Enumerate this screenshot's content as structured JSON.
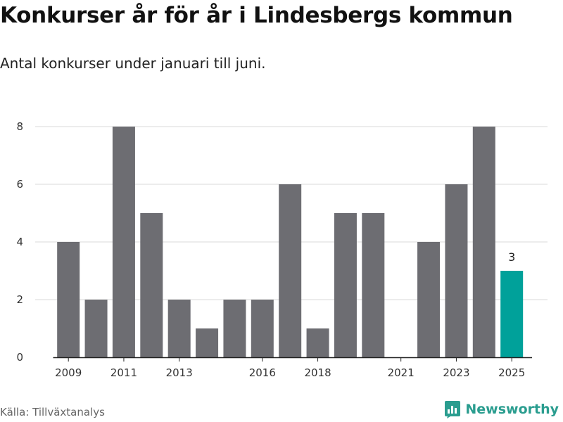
{
  "title": "Konkurser år för år i Lindesbergs kommun",
  "subtitle": "Antal konkurser under januari till juni.",
  "source": "Källa: Tillväxtanalys",
  "brand": {
    "name": "Newsworthy",
    "icon": "newsworthy-logo-icon"
  },
  "colors": {
    "bar": "#6d6d72",
    "highlight": "#00a19a",
    "grid": "#d9d9d9",
    "axis": "#222222",
    "brand": "#2a9d8f"
  },
  "chart_data": {
    "type": "bar",
    "categories": [
      "2009",
      "2010",
      "2011",
      "2012",
      "2013",
      "2014",
      "2015",
      "2016",
      "2017",
      "2018",
      "2019",
      "2020",
      "2021",
      "2022",
      "2023",
      "2024",
      "2025"
    ],
    "values": [
      4,
      2,
      8,
      5,
      2,
      1,
      2,
      2,
      6,
      1,
      5,
      5,
      0,
      4,
      6,
      8,
      3
    ],
    "highlight_category": "2025",
    "highlight_label": "3",
    "x_tick_labels": [
      "2009",
      "2011",
      "2013",
      "2016",
      "2018",
      "2021",
      "2023",
      "2025"
    ],
    "y_ticks": [
      "0",
      "2",
      "4",
      "6",
      "8"
    ],
    "ylim": [
      0,
      8
    ],
    "grid": true,
    "xlabel": "",
    "ylabel": ""
  }
}
